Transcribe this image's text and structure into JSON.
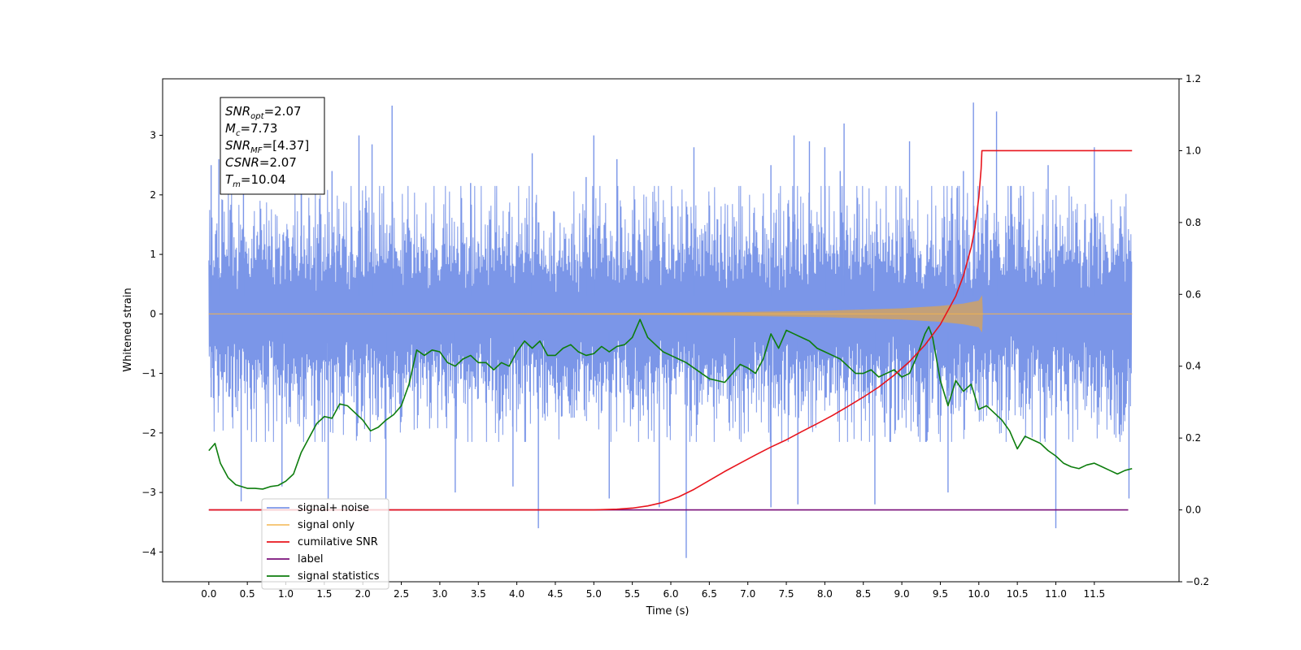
{
  "chart_data": {
    "type": "line",
    "title": "",
    "xlabel": "Time (s)",
    "ylabel": "Whitened strain",
    "xlim": [
      -0.6,
      12.6
    ],
    "ylim": [
      -4.5,
      3.95
    ],
    "ylim_right": [
      -0.2,
      1.2
    ],
    "xticks": [
      0.0,
      0.5,
      1.0,
      1.5,
      2.0,
      2.5,
      3.0,
      3.5,
      4.0,
      4.5,
      5.0,
      5.5,
      6.0,
      6.5,
      7.0,
      7.5,
      8.0,
      8.5,
      9.0,
      9.5,
      10.0,
      10.5,
      11.0,
      11.5
    ],
    "xtick_labels": [
      "0.0",
      "0.5",
      "1.0",
      "1.5",
      "2.0",
      "2.5",
      "3.0",
      "3.5",
      "4.0",
      "4.5",
      "5.0",
      "5.5",
      "6.0",
      "6.5",
      "7.0",
      "7.5",
      "8.0",
      "8.5",
      "9.0",
      "9.5",
      "10.0",
      "10.5",
      "11.0",
      "11.5"
    ],
    "yticks": [
      -4,
      -3,
      -2,
      -1,
      0,
      1,
      2,
      3
    ],
    "ytick_labels": [
      "−4",
      "−3",
      "−2",
      "−1",
      "0",
      "1",
      "2",
      "3"
    ],
    "yticks_right": [
      -0.2,
      0.0,
      0.2,
      0.4,
      0.6,
      0.8,
      1.0,
      1.2
    ],
    "ytick_labels_right": [
      "−0.2",
      "0.0",
      "0.2",
      "0.4",
      "0.6",
      "0.8",
      "1.0",
      "1.2"
    ],
    "grid": false,
    "legend_position": "lower-left",
    "annotation_box": {
      "lines": [
        {
          "sym": "SNR",
          "sub": "opt",
          "val": "=2.07"
        },
        {
          "sym": "M",
          "sub": "c",
          "val": "=7.73"
        },
        {
          "sym": "SNR",
          "sub": "MF",
          "val": "=[4.37]"
        },
        {
          "sym": "CSNR",
          "sub": "",
          "val": "=2.07"
        },
        {
          "sym": "T",
          "sub": "m",
          "val": "=10.04"
        }
      ]
    },
    "series": [
      {
        "name": "signal+ noise",
        "axis": "left",
        "color": "#7b96e8",
        "kind": "noise",
        "x_range": [
          0.0,
          11.99
        ],
        "core_amplitude": 1.4,
        "spike_top": [
          [
            0.03,
            2.5
          ],
          [
            0.13,
            2.6
          ],
          [
            0.45,
            2.4
          ],
          [
            1.2,
            2.3
          ],
          [
            1.6,
            2.4
          ],
          [
            1.95,
            3.0
          ],
          [
            2.12,
            2.85
          ],
          [
            2.38,
            3.5
          ],
          [
            3.4,
            2.2
          ],
          [
            4.2,
            2.7
          ],
          [
            4.9,
            2.3
          ],
          [
            5.0,
            3.0
          ],
          [
            5.3,
            2.6
          ],
          [
            6.3,
            2.8
          ],
          [
            7.3,
            2.5
          ],
          [
            7.6,
            3.0
          ],
          [
            7.8,
            2.9
          ],
          [
            8.0,
            2.8
          ],
          [
            8.2,
            2.4
          ],
          [
            8.25,
            3.2
          ],
          [
            9.1,
            2.9
          ],
          [
            9.8,
            2.4
          ],
          [
            9.93,
            3.55
          ],
          [
            10.23,
            3.4
          ],
          [
            10.9,
            2.5
          ],
          [
            11.5,
            2.8
          ]
        ],
        "spike_bottom": [
          [
            0.03,
            -1.4
          ],
          [
            0.42,
            -3.15
          ],
          [
            0.95,
            -2.9
          ],
          [
            1.55,
            -3.1
          ],
          [
            2.3,
            -3.1
          ],
          [
            3.2,
            -3.0
          ],
          [
            3.95,
            -2.9
          ],
          [
            4.28,
            -3.6
          ],
          [
            5.2,
            -3.1
          ],
          [
            5.85,
            -3.25
          ],
          [
            6.2,
            -4.1
          ],
          [
            7.3,
            -3.25
          ],
          [
            7.65,
            -3.2
          ],
          [
            8.65,
            -3.2
          ],
          [
            9.6,
            -3.0
          ],
          [
            11.0,
            -3.6
          ],
          [
            11.95,
            -3.1
          ]
        ]
      },
      {
        "name": "signal only",
        "axis": "left",
        "color": "#f5b44c",
        "kind": "chirp",
        "envelope": [
          [
            0.0,
            0.0
          ],
          [
            4.0,
            0.005
          ],
          [
            6.0,
            0.015
          ],
          [
            7.0,
            0.03
          ],
          [
            8.0,
            0.05
          ],
          [
            9.0,
            0.09
          ],
          [
            9.5,
            0.13
          ],
          [
            9.8,
            0.17
          ],
          [
            10.0,
            0.22
          ],
          [
            10.04,
            0.3
          ],
          [
            10.05,
            0.0
          ],
          [
            11.99,
            0.0
          ]
        ]
      },
      {
        "name": "cumilative SNR",
        "axis": "right",
        "color": "#e8141c",
        "kind": "line",
        "x": [
          0.0,
          5.0,
          5.3,
          5.5,
          5.7,
          5.9,
          6.1,
          6.3,
          6.5,
          6.7,
          6.9,
          7.1,
          7.3,
          7.5,
          7.7,
          7.9,
          8.1,
          8.3,
          8.5,
          8.7,
          8.9,
          9.1,
          9.3,
          9.5,
          9.7,
          9.8,
          9.9,
          9.95,
          10.0,
          10.03,
          10.04,
          11.99
        ],
        "y": [
          0.0,
          0.0,
          0.002,
          0.005,
          0.011,
          0.021,
          0.036,
          0.057,
          0.082,
          0.107,
          0.13,
          0.153,
          0.175,
          0.195,
          0.218,
          0.24,
          0.263,
          0.288,
          0.314,
          0.342,
          0.375,
          0.413,
          0.459,
          0.516,
          0.595,
          0.652,
          0.73,
          0.785,
          0.87,
          0.95,
          1.0,
          1.0
        ]
      },
      {
        "name": "label",
        "axis": "right",
        "color": "#7a0f7a",
        "kind": "line",
        "x": [
          0.0,
          11.94
        ],
        "y": [
          0.0,
          0.0
        ]
      },
      {
        "name": "signal statistics",
        "axis": "right",
        "color": "#0d7d0d",
        "kind": "line",
        "x": [
          0.0,
          0.08,
          0.15,
          0.25,
          0.35,
          0.5,
          0.6,
          0.7,
          0.8,
          0.9,
          1.0,
          1.1,
          1.2,
          1.3,
          1.4,
          1.5,
          1.6,
          1.7,
          1.8,
          1.9,
          2.0,
          2.1,
          2.2,
          2.3,
          2.4,
          2.5,
          2.6,
          2.7,
          2.8,
          2.9,
          3.0,
          3.1,
          3.2,
          3.3,
          3.4,
          3.5,
          3.6,
          3.7,
          3.8,
          3.9,
          4.0,
          4.1,
          4.2,
          4.3,
          4.4,
          4.5,
          4.6,
          4.7,
          4.8,
          4.9,
          5.0,
          5.1,
          5.2,
          5.3,
          5.4,
          5.5,
          5.6,
          5.7,
          5.8,
          5.9,
          6.0,
          6.1,
          6.2,
          6.3,
          6.4,
          6.5,
          6.6,
          6.7,
          6.8,
          6.9,
          7.0,
          7.1,
          7.2,
          7.3,
          7.4,
          7.5,
          7.6,
          7.7,
          7.8,
          7.9,
          8.0,
          8.1,
          8.2,
          8.3,
          8.4,
          8.5,
          8.6,
          8.7,
          8.8,
          8.9,
          9.0,
          9.1,
          9.2,
          9.3,
          9.35,
          9.4,
          9.5,
          9.6,
          9.7,
          9.8,
          9.9,
          10.0,
          10.1,
          10.2,
          10.3,
          10.4,
          10.5,
          10.6,
          10.7,
          10.8,
          10.9,
          11.0,
          11.1,
          11.2,
          11.3,
          11.4,
          11.5,
          11.6,
          11.7,
          11.8,
          11.9,
          11.99
        ],
        "y": [
          0.165,
          0.185,
          0.13,
          0.09,
          0.07,
          0.06,
          0.06,
          0.058,
          0.065,
          0.068,
          0.08,
          0.1,
          0.16,
          0.2,
          0.24,
          0.26,
          0.255,
          0.295,
          0.29,
          0.27,
          0.25,
          0.22,
          0.23,
          0.25,
          0.265,
          0.29,
          0.35,
          0.445,
          0.43,
          0.445,
          0.44,
          0.41,
          0.4,
          0.42,
          0.43,
          0.41,
          0.41,
          0.39,
          0.41,
          0.4,
          0.44,
          0.47,
          0.45,
          0.47,
          0.43,
          0.43,
          0.45,
          0.46,
          0.44,
          0.43,
          0.435,
          0.455,
          0.44,
          0.455,
          0.46,
          0.48,
          0.53,
          0.48,
          0.46,
          0.44,
          0.43,
          0.42,
          0.41,
          0.395,
          0.38,
          0.365,
          0.36,
          0.355,
          0.38,
          0.405,
          0.395,
          0.38,
          0.42,
          0.49,
          0.45,
          0.5,
          0.49,
          0.48,
          0.47,
          0.45,
          0.44,
          0.43,
          0.42,
          0.4,
          0.38,
          0.38,
          0.39,
          0.37,
          0.38,
          0.39,
          0.37,
          0.38,
          0.43,
          0.49,
          0.51,
          0.48,
          0.36,
          0.29,
          0.36,
          0.33,
          0.35,
          0.28,
          0.29,
          0.27,
          0.25,
          0.22,
          0.17,
          0.205,
          0.195,
          0.185,
          0.165,
          0.15,
          0.13,
          0.12,
          0.115,
          0.125,
          0.13,
          0.12,
          0.11,
          0.1,
          0.11,
          0.115
        ]
      }
    ]
  }
}
